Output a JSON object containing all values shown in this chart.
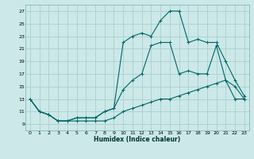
{
  "title": "",
  "xlabel": "Humidex (Indice chaleur)",
  "bg_color": "#cce8e8",
  "grid_color": "#aacfcf",
  "line_color": "#006666",
  "xmin": -0.5,
  "xmax": 23.5,
  "ymin": 8,
  "ymax": 28,
  "yticks": [
    9,
    11,
    13,
    15,
    17,
    19,
    21,
    23,
    25,
    27
  ],
  "xticks": [
    0,
    1,
    2,
    3,
    4,
    5,
    6,
    7,
    8,
    9,
    10,
    11,
    12,
    13,
    14,
    15,
    16,
    17,
    18,
    19,
    20,
    21,
    22,
    23
  ],
  "series": [
    {
      "x": [
        0,
        1,
        2,
        3,
        4,
        5,
        6,
        7,
        8,
        9,
        10,
        11,
        12,
        13,
        14,
        15,
        16,
        17,
        18,
        19,
        20,
        21,
        22,
        23
      ],
      "y": [
        13,
        11,
        10.5,
        9.5,
        9.5,
        10,
        10,
        10,
        11,
        11.5,
        22,
        23,
        23.5,
        23,
        25.5,
        27,
        27,
        22,
        22.5,
        22,
        22,
        19,
        16,
        13.5
      ]
    },
    {
      "x": [
        0,
        1,
        2,
        3,
        4,
        5,
        6,
        7,
        8,
        9,
        10,
        11,
        12,
        13,
        14,
        15,
        16,
        17,
        18,
        19,
        20,
        21,
        22,
        23
      ],
      "y": [
        13,
        11,
        10.5,
        9.5,
        9.5,
        10,
        10,
        10,
        11,
        11.5,
        14.5,
        16,
        17,
        21.5,
        22,
        22,
        17,
        17.5,
        17,
        17,
        21.5,
        16,
        15,
        13
      ]
    },
    {
      "x": [
        0,
        1,
        2,
        3,
        4,
        5,
        6,
        7,
        8,
        9,
        10,
        11,
        12,
        13,
        14,
        15,
        16,
        17,
        18,
        19,
        20,
        21,
        22,
        23
      ],
      "y": [
        13,
        11,
        10.5,
        9.5,
        9.5,
        9.5,
        9.5,
        9.5,
        9.5,
        10,
        11,
        11.5,
        12,
        12.5,
        13,
        13,
        13.5,
        14,
        14.5,
        15,
        15.5,
        16,
        13,
        13
      ]
    }
  ]
}
